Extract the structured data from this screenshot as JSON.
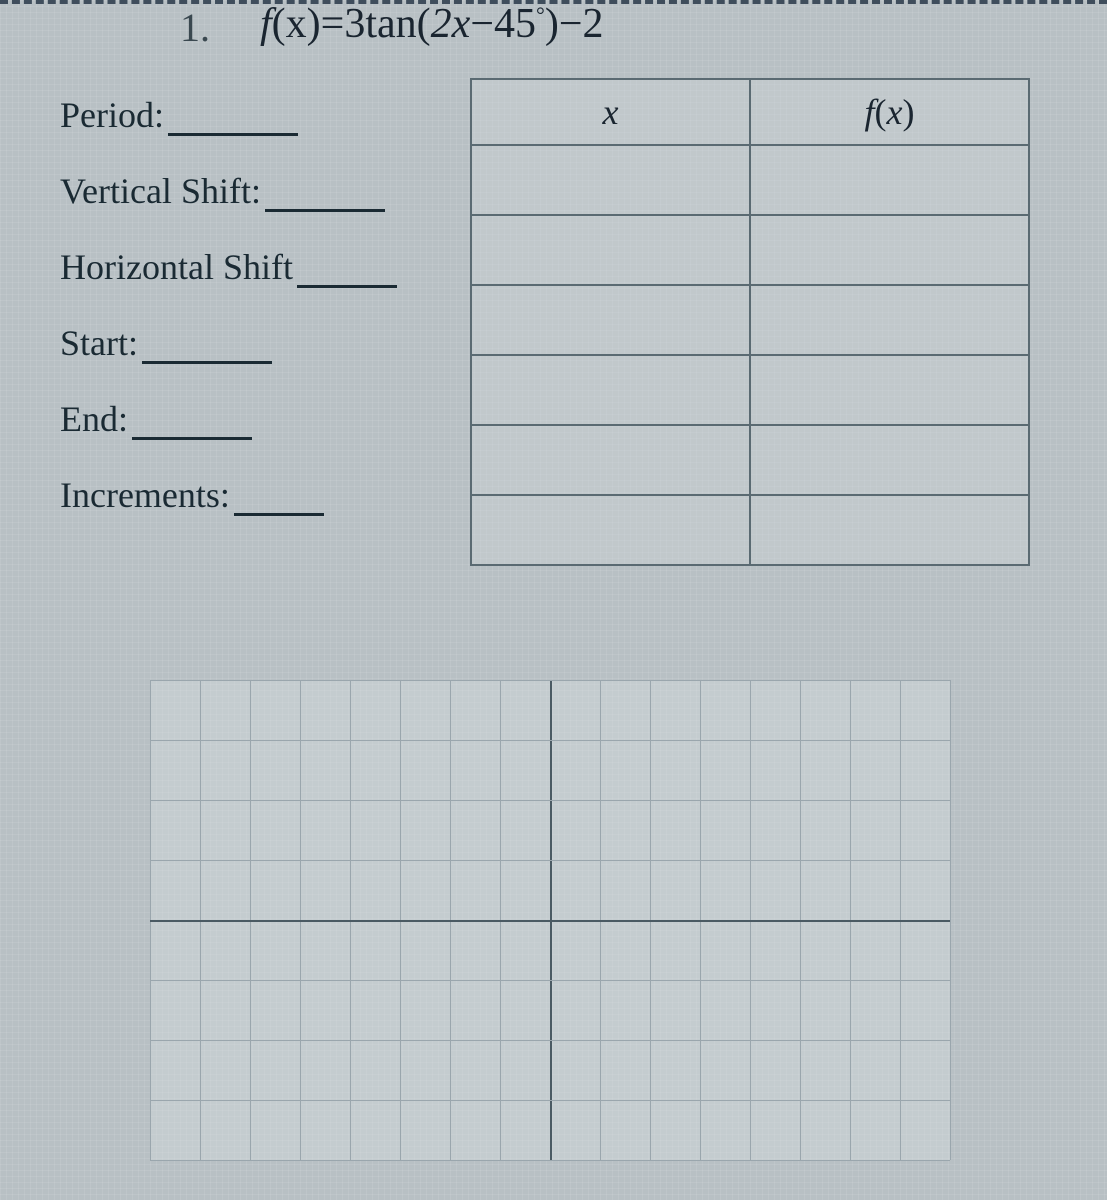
{
  "problem": {
    "number": "1.",
    "equation_parts": {
      "fx": "f",
      "open": "(x)",
      "eq": "=",
      "coef": "3",
      "fn": "tan",
      "arg_open": "(",
      "inside": "2x",
      "minus": "−",
      "deg_num": "45",
      "deg_sym": "°",
      "arg_close": ")",
      "tail": "−2"
    }
  },
  "labels": [
    {
      "text": "Period:",
      "blank_width": 130
    },
    {
      "text": "Vertical Shift:",
      "blank_width": 120
    },
    {
      "text": "Horizontal Shift",
      "blank_width": 100
    },
    {
      "text": "Start:",
      "blank_width": 130
    },
    {
      "text": "End:",
      "blank_width": 120
    },
    {
      "text": "Increments:",
      "blank_width": 90
    }
  ],
  "xy_table": {
    "headers": [
      "x",
      "f(x)"
    ],
    "data_rows": 6
  },
  "graph": {
    "cols": 16,
    "rows": 8,
    "axis_col": 8,
    "axis_row": 4,
    "line_color": "#9aa6ad",
    "axis_color": "#4a5a63",
    "background": "rgba(215,222,226,0.4)"
  },
  "colors": {
    "page_bg": "#b8c0c4",
    "text": "#1a2a33",
    "dash": "#2a3a4a",
    "table_border": "#5a6a72"
  }
}
